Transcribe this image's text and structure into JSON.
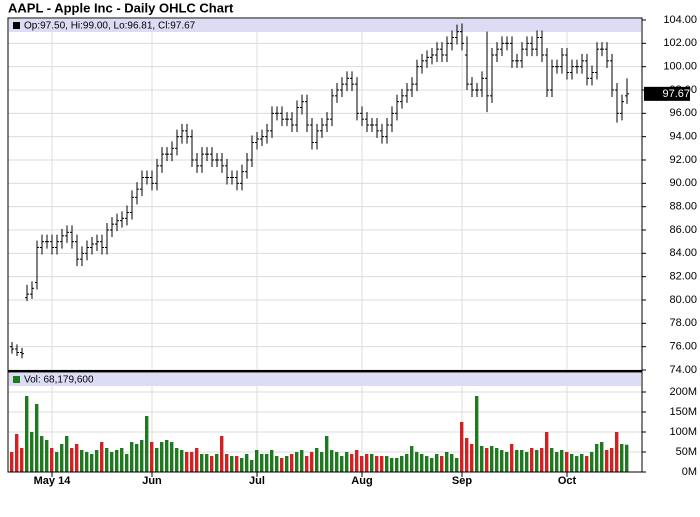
{
  "chart_data": {
    "type": "ohlc",
    "title": "AAPL - Apple Inc - Daily OHLC Chart",
    "legend_text": "Op:97.50, Hi:99.00, Lo:96.81, Cl:97.67",
    "volume_legend_text": "Vol: 68,179,600",
    "last_label": "97.67",
    "grid": true,
    "bar_color": "#000000",
    "up_color": "#1e7a1e",
    "down_color": "#d42020",
    "band_color": "#dcdcf4",
    "categories": [
      null,
      null,
      null,
      null,
      null,
      null,
      null,
      null,
      "May 14",
      null,
      null,
      null,
      null,
      null,
      null,
      null,
      null,
      null,
      null,
      null,
      null,
      null,
      null,
      null,
      null,
      null,
      null,
      null,
      "Jun",
      null,
      null,
      null,
      null,
      null,
      null,
      null,
      null,
      null,
      null,
      null,
      null,
      null,
      null,
      null,
      null,
      null,
      null,
      null,
      null,
      "Jul",
      null,
      null,
      null,
      null,
      null,
      null,
      null,
      null,
      null,
      null,
      null,
      null,
      null,
      null,
      null,
      null,
      null,
      null,
      null,
      null,
      "Aug",
      null,
      null,
      null,
      null,
      null,
      null,
      null,
      null,
      null,
      null,
      null,
      null,
      null,
      null,
      null,
      null,
      null,
      null,
      null,
      "Sep",
      null,
      null,
      null,
      null,
      null,
      null,
      null,
      null,
      null,
      null,
      null,
      null,
      null,
      null,
      null,
      null,
      null,
      null,
      null,
      null,
      "Oct",
      null,
      null,
      null,
      null,
      null,
      null,
      null,
      null,
      null,
      null,
      null,
      null
    ],
    "open": [
      76.0,
      75.8,
      75.5,
      80.2,
      80.5,
      81.5,
      84.5,
      85,
      85,
      84.5,
      85,
      85.5,
      85.8,
      85,
      83.5,
      84,
      84.5,
      84.8,
      85,
      84.5,
      86,
      86.5,
      86.8,
      87,
      87.5,
      88.8,
      89.5,
      90.5,
      90.5,
      90,
      91.5,
      92.5,
      92.5,
      93,
      94,
      94.5,
      94,
      92,
      91.5,
      92.5,
      92.5,
      92,
      92,
      91.5,
      90.5,
      90.5,
      90,
      91,
      92,
      93.5,
      93.8,
      94,
      94.5,
      96,
      96,
      95.5,
      95.5,
      95,
      96.5,
      97,
      95,
      93.5,
      94.5,
      95,
      95.5,
      97.5,
      98,
      98.5,
      99,
      98.5,
      96,
      95.5,
      95,
      95,
      94.5,
      94,
      95,
      96,
      97,
      97.5,
      98,
      98.5,
      100,
      100.5,
      100.8,
      101,
      101.5,
      101,
      102,
      102.5,
      103,
      101,
      98.5,
      98,
      98,
      99,
      97.5,
      101,
      101.5,
      102,
      102,
      100.5,
      100.5,
      101.5,
      102,
      101.5,
      102.5,
      101,
      98,
      100,
      100,
      101,
      99.5,
      100,
      100,
      100.5,
      99,
      99.5,
      101.5,
      101.5,
      100.5,
      98,
      96,
      97.5
    ],
    "high": [
      76.4,
      76.2,
      75.9,
      81.3,
      81.6,
      85.1,
      85.6,
      85.6,
      85.6,
      85.6,
      86.1,
      86.4,
      86.4,
      85.6,
      84.6,
      85.1,
      85.4,
      85.6,
      85.6,
      86.6,
      87.1,
      87.4,
      87.6,
      88.1,
      89.4,
      90.1,
      91.1,
      91.1,
      91.1,
      92.1,
      93.1,
      93.1,
      93.6,
      94.6,
      95.1,
      95.1,
      94.6,
      92.6,
      93.1,
      93.1,
      93.1,
      92.6,
      92.6,
      92.1,
      91.1,
      91.1,
      91.6,
      92.6,
      94.1,
      94.4,
      94.6,
      95.1,
      96.6,
      96.6,
      96.6,
      96.1,
      96.1,
      97.1,
      97.6,
      97.6,
      95.6,
      95.1,
      95.6,
      96.1,
      98.1,
      98.6,
      99.1,
      99.6,
      99.6,
      99.1,
      96.6,
      96.1,
      95.6,
      95.6,
      95.1,
      95.6,
      96.6,
      97.6,
      98.1,
      98.6,
      99.1,
      100.6,
      101.1,
      101.4,
      101.6,
      102.1,
      102.1,
      102.6,
      103.1,
      103.6,
      103.7,
      102.6,
      99.1,
      98.6,
      99.6,
      103.0,
      101.6,
      102.1,
      102.6,
      102.6,
      102.6,
      101.1,
      102.1,
      102.6,
      102.6,
      103.1,
      103.1,
      101.6,
      100.6,
      100.6,
      101.6,
      101.6,
      100.6,
      100.6,
      101.1,
      101.1,
      100.1,
      102.1,
      102.1,
      102.1,
      101.1,
      98.6,
      97.6,
      99.0
    ],
    "low": [
      75.4,
      75.2,
      75.0,
      79.9,
      80.1,
      80.9,
      83.9,
      84.4,
      83.9,
      83.9,
      84.4,
      84.9,
      84.4,
      82.9,
      82.9,
      83.4,
      83.9,
      84.2,
      83.9,
      83.9,
      85.4,
      85.9,
      86.2,
      86.4,
      86.9,
      88.2,
      88.9,
      89.9,
      89.4,
      89.4,
      90.9,
      91.9,
      91.9,
      92.4,
      93.4,
      93.4,
      91.4,
      90.9,
      90.9,
      91.9,
      91.4,
      91.4,
      90.9,
      89.9,
      89.9,
      89.4,
      89.4,
      90.4,
      91.4,
      92.9,
      93.2,
      93.4,
      93.9,
      95.4,
      94.9,
      94.9,
      94.4,
      94.4,
      95.9,
      94.4,
      92.9,
      92.9,
      93.9,
      94.4,
      94.9,
      96.9,
      97.4,
      97.9,
      97.9,
      95.4,
      94.9,
      94.4,
      94.4,
      93.9,
      93.4,
      93.4,
      94.4,
      95.4,
      96.4,
      96.9,
      97.4,
      97.9,
      99.4,
      99.9,
      100.2,
      100.4,
      100.4,
      100.4,
      101.4,
      101.9,
      101.4,
      98.0,
      97.4,
      97.4,
      97.4,
      96.1,
      96.9,
      100.4,
      100.9,
      101.4,
      99.9,
      99.9,
      99.9,
      100.9,
      100.9,
      100.9,
      100.4,
      97.4,
      97.4,
      99.4,
      99.4,
      98.9,
      98.9,
      99.4,
      99.4,
      98.4,
      98.4,
      98.9,
      100.9,
      99.9,
      97.4,
      95.2,
      95.4,
      96.81
    ],
    "close": [
      75.8,
      75.5,
      75.4,
      80.5,
      81,
      84.5,
      85,
      85,
      84.5,
      85,
      85.5,
      85.8,
      85,
      83.5,
      84,
      84.5,
      84.8,
      85,
      84.5,
      86,
      86.5,
      86.8,
      87,
      87.5,
      88.8,
      89.5,
      90.5,
      90.5,
      90,
      91.5,
      92.5,
      92.5,
      93,
      94,
      94.5,
      94,
      92,
      91.5,
      92.5,
      92.5,
      92,
      92,
      91.5,
      90.5,
      90.5,
      90,
      91,
      92,
      93.5,
      93.8,
      94,
      94.5,
      96,
      96,
      95.5,
      95.5,
      95,
      96.5,
      97,
      95,
      93.5,
      94.5,
      95,
      95.5,
      97.5,
      98,
      98.5,
      99,
      98.5,
      96,
      95.5,
      95,
      95,
      94.5,
      94,
      95,
      96,
      97,
      97.5,
      98,
      98.5,
      100,
      100.5,
      100.8,
      101,
      101.5,
      101,
      102,
      102.5,
      103,
      102,
      98.5,
      98,
      98,
      99,
      97.5,
      101,
      101.5,
      102,
      102,
      100.5,
      100.5,
      101.5,
      102,
      101.5,
      102.5,
      101,
      98,
      100,
      100,
      101,
      99.5,
      100,
      100,
      100.5,
      99,
      99.5,
      101.5,
      101.5,
      100.5,
      98,
      96,
      97,
      97.67
    ],
    "volume": [
      50,
      95,
      60,
      190,
      100,
      170,
      90,
      80,
      60,
      50,
      70,
      90,
      60,
      70,
      55,
      50,
      45,
      55,
      75,
      60,
      50,
      55,
      60,
      45,
      75,
      70,
      80,
      140,
      75,
      60,
      75,
      80,
      75,
      60,
      55,
      50,
      50,
      60,
      45,
      45,
      40,
      45,
      90,
      45,
      40,
      40,
      35,
      45,
      30,
      55,
      45,
      45,
      55,
      40,
      35,
      40,
      45,
      50,
      55,
      40,
      50,
      60,
      50,
      90,
      55,
      50,
      40,
      50,
      45,
      55,
      40,
      45,
      45,
      40,
      40,
      40,
      35,
      35,
      40,
      45,
      65,
      50,
      45,
      40,
      35,
      45,
      40,
      50,
      45,
      35,
      125,
      85,
      70,
      190,
      65,
      60,
      65,
      60,
      55,
      50,
      70,
      55,
      55,
      50,
      60,
      55,
      60,
      100,
      60,
      50,
      55,
      50,
      45,
      40,
      45,
      40,
      50,
      70,
      75,
      55,
      60,
      100,
      70,
      68.1796
    ],
    "ylim": [
      74,
      104
    ],
    "yticks": [
      {
        "value": 74,
        "label": "74.00"
      },
      {
        "value": 76,
        "label": "76.00"
      },
      {
        "value": 78,
        "label": "78.00"
      },
      {
        "value": 80,
        "label": "80.00"
      },
      {
        "value": 82,
        "label": "82.00"
      },
      {
        "value": 84,
        "label": "84.00"
      },
      {
        "value": 86,
        "label": "86.00"
      },
      {
        "value": 88,
        "label": "88.00"
      },
      {
        "value": 90,
        "label": "90.00"
      },
      {
        "value": 92,
        "label": "92.00"
      },
      {
        "value": 94,
        "label": "94.00"
      },
      {
        "value": 96,
        "label": "96.00"
      },
      {
        "value": 98,
        "label": "98.00"
      },
      {
        "value": 100,
        "label": "100.00"
      },
      {
        "value": 102,
        "label": "102.00"
      },
      {
        "value": 104,
        "label": "104.00"
      }
    ],
    "y2lim": [
      0,
      200
    ],
    "y2ticks": [
      {
        "value": 0,
        "label": "0M"
      },
      {
        "value": 50,
        "label": "50M"
      },
      {
        "value": 100,
        "label": "100M"
      },
      {
        "value": 150,
        "label": "150M"
      },
      {
        "value": 200,
        "label": "200M"
      }
    ]
  }
}
